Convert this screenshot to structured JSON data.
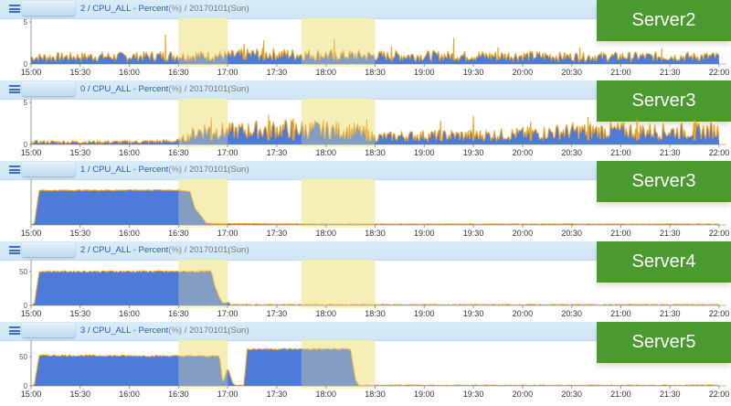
{
  "chart_data": [
    {
      "type": "area",
      "title_prefix": "2 / CPU_ALL - Percent",
      "title_unit": "(%)",
      "title_date": " / 20170101(Sun)",
      "badge": "Server2",
      "ylim": [
        0,
        5
      ],
      "yticks": [
        "5",
        "0"
      ],
      "ytick_values": [
        5,
        0
      ],
      "xticks": [
        "15:00",
        "15:30",
        "16:00",
        "16:30",
        "17:00",
        "17:30",
        "18:00",
        "18:30",
        "19:00",
        "19:30",
        "20:00",
        "20:30",
        "21:00",
        "21:30",
        "22:00"
      ],
      "x_range": [
        "15:00",
        "22:00"
      ],
      "highlights": [
        [
          "16:30",
          "17:00"
        ],
        [
          "17:45",
          "18:30"
        ]
      ],
      "series": [
        {
          "x": [
            "15:00",
            "15:30",
            "16:00",
            "16:20",
            "16:30",
            "17:00",
            "17:15",
            "17:30",
            "18:00",
            "18:30",
            "19:00",
            "19:30",
            "20:00",
            "20:30",
            "21:00",
            "21:30",
            "22:00"
          ],
          "values": [
            0.8,
            0.9,
            0.9,
            1.0,
            1.0,
            1.0,
            1.2,
            1.2,
            1.1,
            1.0,
            1.0,
            1.0,
            1.0,
            0.9,
            0.9,
            0.9,
            0.9
          ]
        }
      ],
      "spikes": [
        [
          "16:22",
          3.5
        ],
        [
          "17:10",
          2.4
        ],
        [
          "17:22",
          2.8
        ],
        [
          "18:05",
          3.0
        ],
        [
          "18:40",
          2.1
        ],
        [
          "19:18",
          3.1
        ],
        [
          "19:45",
          2.0
        ],
        [
          "20:35",
          2.0
        ],
        [
          "21:25",
          1.9
        ]
      ]
    },
    {
      "type": "area",
      "title_prefix": "0 / CPU_ALL - Percent",
      "title_unit": "(%)",
      "title_date": " / 20170101(Sun)",
      "badge": "Server3",
      "ylim": [
        0,
        5
      ],
      "yticks": [
        "5",
        "0"
      ],
      "ytick_values": [
        5,
        0
      ],
      "xticks": [
        "15:00",
        "15:30",
        "16:00",
        "16:30",
        "17:00",
        "17:30",
        "18:00",
        "18:30",
        "19:00",
        "19:30",
        "20:00",
        "20:30",
        "21:00",
        "21:30",
        "22:00"
      ],
      "x_range": [
        "15:00",
        "22:00"
      ],
      "highlights": [
        [
          "16:30",
          "17:00"
        ],
        [
          "17:45",
          "18:30"
        ]
      ],
      "series": [
        {
          "x": [
            "15:00",
            "15:30",
            "16:00",
            "16:30",
            "16:38",
            "16:45",
            "17:00",
            "17:30",
            "18:00",
            "18:20",
            "18:30",
            "19:00",
            "19:30",
            "20:00",
            "20:30",
            "21:00",
            "21:30",
            "22:00"
          ],
          "values": [
            0.3,
            0.3,
            0.3,
            0.4,
            1.2,
            1.8,
            1.6,
            1.9,
            1.8,
            1.6,
            0.9,
            1.1,
            1.1,
            1.3,
            1.6,
            1.7,
            1.6,
            1.7
          ]
        }
      ],
      "spikes": [
        [
          "16:50",
          3.2
        ],
        [
          "17:25",
          3.5
        ],
        [
          "17:40",
          3.1
        ],
        [
          "18:25",
          3.0
        ],
        [
          "19:10",
          2.8
        ],
        [
          "19:30",
          3.4
        ],
        [
          "20:05",
          2.7
        ],
        [
          "20:40",
          3.3
        ],
        [
          "21:10",
          3.0
        ],
        [
          "21:45",
          2.9
        ]
      ]
    },
    {
      "type": "area",
      "title_prefix": "1 / CPU_ALL - Percent",
      "title_unit": "(%)",
      "title_date": " / 20170101(Sun)",
      "badge": "Server3",
      "ylim": [
        0,
        100
      ],
      "yticks": [],
      "ytick_values": [],
      "xticks": [
        "15:00",
        "15:30",
        "16:00",
        "16:30",
        "17:00",
        "17:30",
        "18:00",
        "18:30",
        "19:00",
        "19:30",
        "20:00",
        "20:30",
        "21:00",
        "21:30",
        "22:00"
      ],
      "x_range": [
        "15:00",
        "22:00"
      ],
      "highlights": [
        [
          "16:30",
          "17:00"
        ],
        [
          "17:45",
          "18:30"
        ]
      ],
      "series": [
        {
          "x": [
            "15:00",
            "15:02",
            "15:05",
            "16:25",
            "16:30",
            "16:37",
            "16:40",
            "16:44",
            "16:47",
            "17:00",
            "18:00",
            "18:30",
            "19:00",
            "20:00",
            "21:00",
            "22:00"
          ],
          "values": [
            2,
            2,
            82,
            83,
            82,
            80,
            40,
            20,
            4,
            3,
            2,
            2,
            2,
            2,
            2,
            2
          ]
        }
      ],
      "spikes": []
    },
    {
      "type": "area",
      "title_prefix": "2 / CPU_ALL - Percent",
      "title_unit": "(%)",
      "title_date": " / 20170101(Sun)",
      "badge": "Server4",
      "ylim": [
        0,
        62
      ],
      "yticks": [
        "50",
        "0"
      ],
      "ytick_values": [
        50,
        0
      ],
      "xticks": [
        "15:00",
        "15:30",
        "16:00",
        "16:30",
        "17:00",
        "17:30",
        "18:00",
        "18:30",
        "19:00",
        "19:30",
        "20:00",
        "20:30",
        "21:00",
        "21:30",
        "22:00"
      ],
      "x_range": [
        "15:00",
        "22:00"
      ],
      "highlights": [
        [
          "16:30",
          "17:00"
        ],
        [
          "17:45",
          "18:30"
        ]
      ],
      "series": [
        {
          "x": [
            "15:00",
            "15:02",
            "15:05",
            "16:30",
            "16:50",
            "16:52",
            "16:55",
            "16:57",
            "17:00",
            "17:02",
            "18:00",
            "19:00",
            "20:00",
            "21:00",
            "22:00"
          ],
          "values": [
            1,
            1,
            50,
            50,
            50,
            30,
            12,
            3,
            5,
            1,
            1,
            1,
            1,
            1,
            1
          ]
        }
      ],
      "spikes": []
    },
    {
      "type": "area",
      "title_prefix": "3 / CPU_ALL - Percent",
      "title_unit": "(%)",
      "title_date": " / 20170101(Sun)",
      "badge": "Server5",
      "ylim": [
        0,
        72
      ],
      "yticks": [
        "50",
        "0"
      ],
      "ytick_values": [
        50,
        0
      ],
      "xticks": [
        "15:00",
        "15:30",
        "16:00",
        "16:30",
        "17:00",
        "17:30",
        "18:00",
        "18:30",
        "19:00",
        "19:30",
        "20:00",
        "20:30",
        "21:00",
        "21:30",
        "22:00"
      ],
      "x_range": [
        "15:00",
        "22:00"
      ],
      "highlights": [
        [
          "16:30",
          "17:00"
        ],
        [
          "17:45",
          "18:30"
        ]
      ],
      "series": [
        {
          "x": [
            "15:00",
            "15:02",
            "15:05",
            "16:30",
            "16:55",
            "16:57",
            "17:00",
            "17:03",
            "17:05",
            "17:10",
            "17:12",
            "18:15",
            "18:18",
            "18:20",
            "19:00",
            "20:00",
            "21:00",
            "22:00"
          ],
          "values": [
            1,
            1,
            52,
            51,
            51,
            5,
            30,
            5,
            1,
            1,
            63,
            63,
            10,
            1,
            1,
            1,
            1,
            1
          ]
        }
      ],
      "spikes": []
    }
  ]
}
